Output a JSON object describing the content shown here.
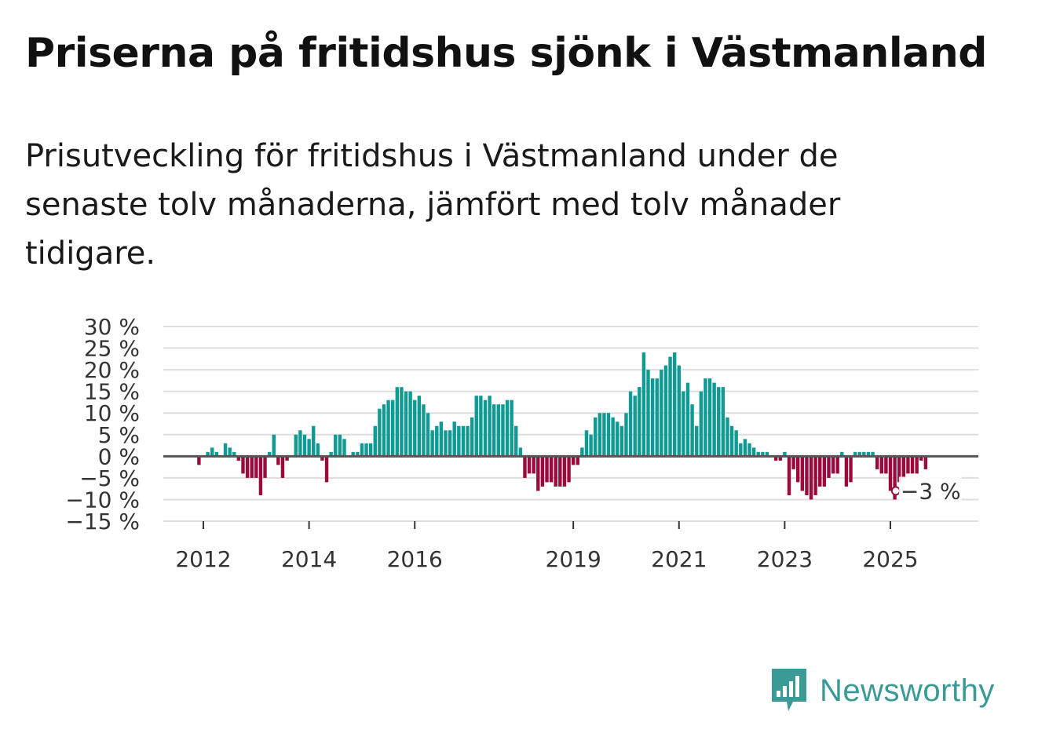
{
  "header": {
    "title": "Priserna på fritidshus sjönk i Västmanland",
    "subtitle": "Prisutveckling för fritidshus i Västmanland under de senaste tolv månaderna, jämfört med tolv månader tidigare."
  },
  "brand": {
    "name": "Newsworthy"
  },
  "colors": {
    "positive": "#0f9b94",
    "negative": "#9b0a3c",
    "grid": "#dddddd",
    "zero": "#555555",
    "brand": "#3a9a95"
  },
  "chart_data": {
    "type": "bar",
    "title": "Priserna på fritidshus sjönk i Västmanland",
    "subtitle": "Prisutveckling för fritidshus i Västmanland under de senaste tolv månaderna, jämfört med tolv månader tidigare.",
    "xlabel": "",
    "ylabel": "",
    "unit": "%",
    "ylim": [
      -15,
      30
    ],
    "yticks": [
      30,
      25,
      20,
      15,
      10,
      5,
      0,
      -5,
      -10,
      -15
    ],
    "ytick_labels": [
      "30 %",
      "25 %",
      "20 %",
      "15 %",
      "10 %",
      "5 %",
      "0 %",
      "−5 %",
      "−10 %",
      "−15 %"
    ],
    "xticks": [
      {
        "label": "2012",
        "year": 2012.0
      },
      {
        "label": "2014",
        "year": 2014.0
      },
      {
        "label": "2016",
        "year": 2016.0
      },
      {
        "label": "2019",
        "year": 2019.0
      },
      {
        "label": "2021",
        "year": 2021.0
      },
      {
        "label": "2023",
        "year": 2023.0
      },
      {
        "label": "2025",
        "year": 2025.0
      }
    ],
    "start_year": 2011.75,
    "months_per_year": 12,
    "values": [
      0,
      0,
      -2,
      0,
      1,
      2,
      1,
      0,
      3,
      2,
      1,
      -1,
      -4,
      -5,
      -5,
      -5,
      -9,
      -5,
      1,
      5,
      -2,
      -5,
      -1,
      0,
      5,
      6,
      5,
      4,
      7,
      3,
      -1,
      -6,
      1,
      5,
      5,
      4,
      0,
      1,
      1,
      3,
      3,
      3,
      7,
      11,
      12,
      13,
      13,
      16,
      16,
      15,
      15,
      13,
      14,
      12,
      10,
      6,
      7,
      8,
      6,
      6,
      8,
      7,
      7,
      7,
      9,
      14,
      14,
      13,
      14,
      12,
      12,
      12,
      13,
      13,
      7,
      2,
      -5,
      -4,
      -4,
      -8,
      -7,
      -6,
      -6,
      -7,
      -7,
      -7,
      -6,
      -2,
      -2,
      2,
      6,
      5,
      9,
      10,
      10,
      10,
      9,
      8,
      7,
      10,
      15,
      14,
      16,
      24,
      20,
      18,
      18,
      20,
      21,
      23,
      24,
      21,
      15,
      17,
      12,
      7,
      15,
      18,
      18,
      17,
      16,
      16,
      9,
      7,
      6,
      3,
      4,
      3,
      2,
      1,
      1,
      1,
      0,
      -1,
      -1,
      1,
      -9,
      -3,
      -6,
      -8,
      -9,
      -10,
      -9,
      -7,
      -7,
      -5,
      -4,
      -4,
      1,
      -7,
      -6,
      1,
      1,
      1,
      1,
      1,
      -3,
      -4,
      -4,
      -8,
      -10,
      -6,
      -5,
      -4,
      -4,
      -4,
      -1,
      -3
    ],
    "last_value_label": "−3 %"
  }
}
